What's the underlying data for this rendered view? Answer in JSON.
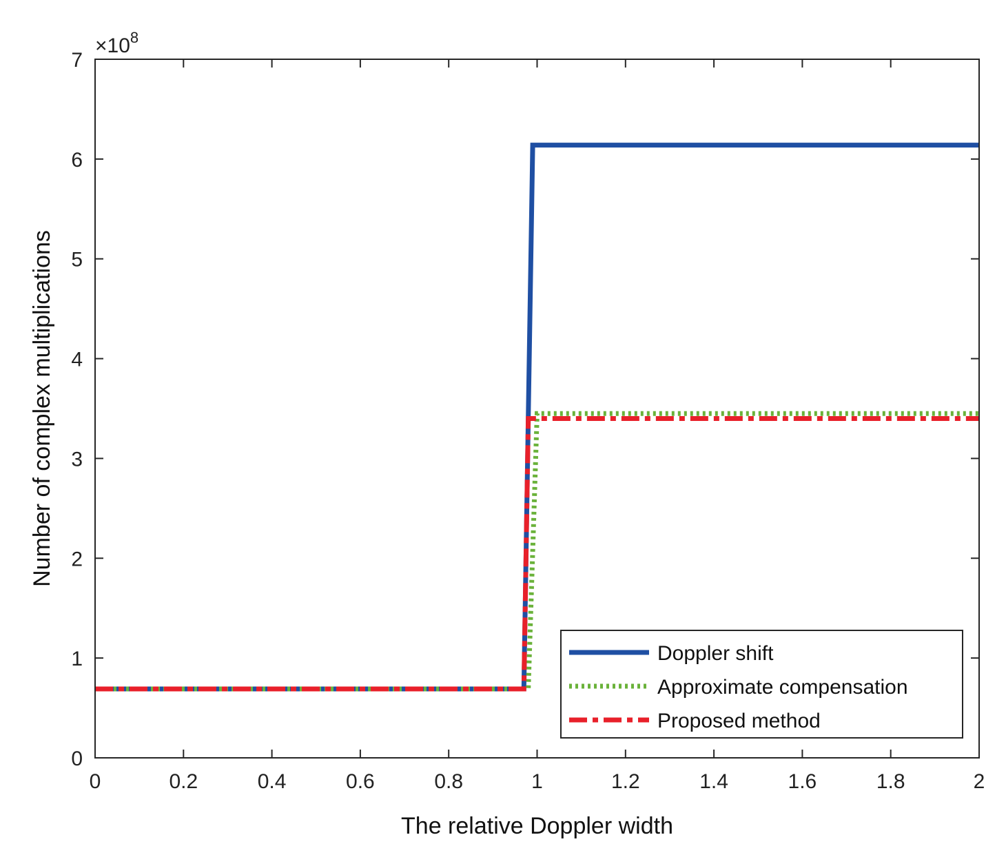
{
  "chart_data": {
    "type": "line",
    "title": "",
    "xlabel": "The relative Doppler width",
    "ylabel": "Number of complex multiplications",
    "y_exponent_label": "×10",
    "y_exponent_power": "8",
    "xlim": [
      0,
      2
    ],
    "ylim": [
      0,
      7
    ],
    "xticks": [
      0,
      0.2,
      0.4,
      0.6,
      0.8,
      1,
      1.2,
      1.4,
      1.6,
      1.8,
      2
    ],
    "xtick_labels": [
      "0",
      "0.2",
      "0.4",
      "0.6",
      "0.8",
      "1",
      "1.2",
      "1.4",
      "1.6",
      "1.8",
      "2"
    ],
    "yticks": [
      0,
      1,
      2,
      3,
      4,
      5,
      6,
      7
    ],
    "ytick_labels": [
      "0",
      "1",
      "2",
      "3",
      "4",
      "5",
      "6",
      "7"
    ],
    "grid": false,
    "legend_position": "bottom-right",
    "series": [
      {
        "name": "Doppler shift",
        "color": "#1f4fa3",
        "style": "solid",
        "x": [
          0,
          0.97,
          0.99,
          2
        ],
        "y": [
          0.69,
          0.69,
          6.14,
          6.14
        ]
      },
      {
        "name": "Approximate compensation",
        "color": "#6ab23a",
        "style": "dotted",
        "x": [
          0,
          0.98,
          1.0,
          2
        ],
        "y": [
          0.69,
          0.69,
          3.45,
          3.45
        ]
      },
      {
        "name": "Proposed method",
        "color": "#e8202a",
        "style": "dashdot",
        "x": [
          0,
          0.97,
          0.98,
          2
        ],
        "y": [
          0.69,
          0.69,
          3.4,
          3.4
        ]
      }
    ]
  }
}
